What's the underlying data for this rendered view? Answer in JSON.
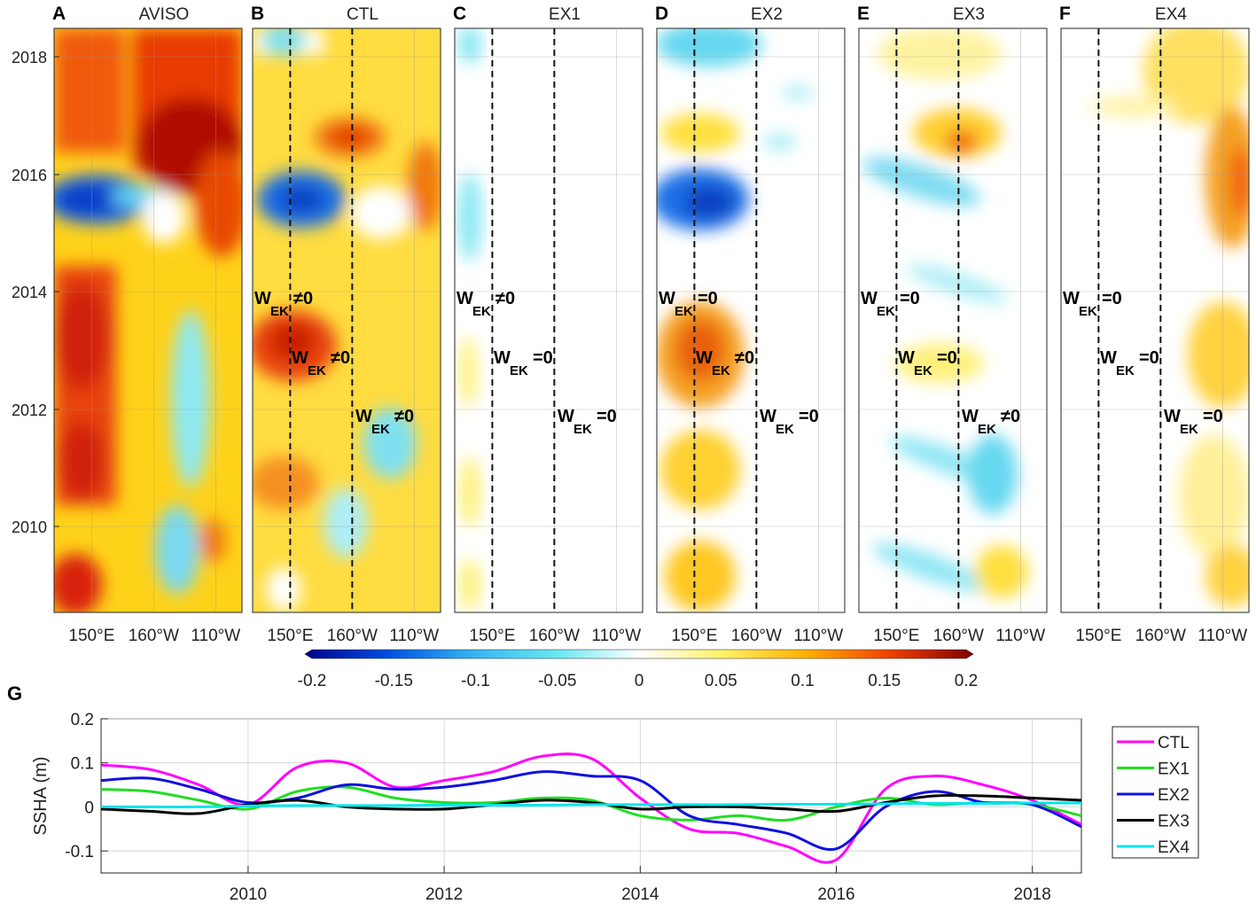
{
  "figure": {
    "panel_letters": [
      "A",
      "B",
      "C",
      "D",
      "E",
      "F"
    ],
    "panel_titles": [
      "AVISO",
      "CTL",
      "EX1",
      "EX2",
      "EX3",
      "EX4"
    ],
    "year_ticks": [
      "2018",
      "2016",
      "2014",
      "2012",
      "2010"
    ],
    "lon_ticks": [
      "150°E",
      "160°W",
      "110°W"
    ],
    "wek_text": "W",
    "wek_sub": "EK",
    "wek_labels": [
      [],
      [
        "≠0",
        "≠0",
        "≠0"
      ],
      [
        "≠0",
        "=0",
        "=0"
      ],
      [
        "=0",
        "≠0",
        "=0"
      ],
      [
        "=0",
        "=0",
        "≠0"
      ],
      [
        "=0",
        "=0",
        "=0"
      ]
    ],
    "colorbar": {
      "ticks": [
        "-0.2",
        "-0.15",
        "-0.1",
        "-0.05",
        "0",
        "0.05",
        "0.1",
        "0.15",
        "0.2"
      ],
      "colors": [
        "#00008f",
        "#0050e0",
        "#33b5f5",
        "#66e8f0",
        "#ffffff",
        "#fff266",
        "#ffb000",
        "#f04000",
        "#800000"
      ]
    }
  },
  "chart_data": {
    "type": "line",
    "panel_letter": "G",
    "ylabel": "SSHA (m)",
    "xlabel": "",
    "xlim": [
      2008.5,
      2018.5
    ],
    "ylim": [
      -0.15,
      0.2
    ],
    "x_ticks": [
      "2010",
      "2012",
      "2014",
      "2016",
      "2018"
    ],
    "y_ticks": [
      "0.2",
      "0.1",
      "0",
      "-0.1"
    ],
    "legend_position": "right",
    "x": [
      2008.5,
      2009.0,
      2009.5,
      2010.0,
      2010.5,
      2011.0,
      2011.5,
      2012.0,
      2012.5,
      2013.0,
      2013.5,
      2014.0,
      2014.5,
      2015.0,
      2015.5,
      2016.0,
      2016.5,
      2017.0,
      2017.5,
      2018.0,
      2018.5
    ],
    "series": [
      {
        "name": "CTL",
        "color": "#ff00ff",
        "values": [
          0.095,
          0.085,
          0.05,
          0.005,
          0.09,
          0.1,
          0.045,
          0.06,
          0.08,
          0.115,
          0.11,
          0.02,
          -0.05,
          -0.06,
          -0.09,
          -0.12,
          0.04,
          0.07,
          0.05,
          0.015,
          -0.04
        ]
      },
      {
        "name": "EX1",
        "color": "#22dd22",
        "values": [
          0.04,
          0.035,
          0.015,
          -0.005,
          0.035,
          0.045,
          0.02,
          0.01,
          0.01,
          0.02,
          0.015,
          -0.02,
          -0.03,
          -0.02,
          -0.03,
          0.0,
          0.02,
          0.005,
          0.01,
          0.005,
          -0.02
        ]
      },
      {
        "name": "EX2",
        "color": "#1010e0",
        "values": [
          0.06,
          0.065,
          0.04,
          0.01,
          0.02,
          0.05,
          0.04,
          0.045,
          0.06,
          0.08,
          0.07,
          0.06,
          -0.02,
          -0.04,
          -0.06,
          -0.095,
          0.0,
          0.035,
          0.01,
          0.005,
          -0.045
        ]
      },
      {
        "name": "EX3",
        "color": "#000000",
        "values": [
          -0.005,
          -0.01,
          -0.015,
          0.005,
          0.015,
          0.0,
          -0.005,
          -0.005,
          0.005,
          0.015,
          0.01,
          -0.005,
          0.0,
          0.0,
          -0.005,
          -0.01,
          0.01,
          0.025,
          0.025,
          0.02,
          0.015
        ]
      },
      {
        "name": "EX4",
        "color": "#00e5ee",
        "values": [
          0.0,
          0.0,
          0.0,
          0.002,
          0.003,
          0.003,
          0.003,
          0.004,
          0.004,
          0.004,
          0.005,
          0.005,
          0.005,
          0.005,
          0.006,
          0.006,
          0.007,
          0.008,
          0.008,
          0.009,
          0.009
        ]
      }
    ]
  }
}
